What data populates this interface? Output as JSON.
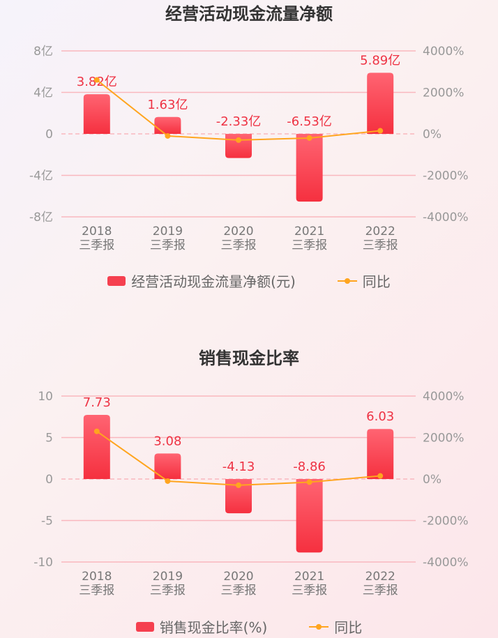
{
  "chart_data": [
    {
      "type": "bar",
      "title": "经营活动现金流量净额",
      "categories": [
        "2018",
        "2019",
        "2020",
        "2021",
        "2022"
      ],
      "category_sub": "三季报",
      "series": [
        {
          "name": "经营活动现金流量净额(元)",
          "kind": "bar",
          "axis": "left",
          "values": [
            3.82,
            1.63,
            -2.33,
            -6.53,
            5.89
          ],
          "labels": [
            "3.82亿",
            "1.63亿",
            "-2.33亿",
            "-6.53亿",
            "5.89亿"
          ]
        },
        {
          "name": "同比",
          "kind": "line",
          "axis": "right",
          "values": [
            2600,
            -100,
            -300,
            -200,
            150
          ]
        }
      ],
      "left_axis": {
        "ylim": [
          -8,
          8
        ],
        "ticks": [
          "8亿",
          "4亿",
          "0",
          "-4亿",
          "-8亿"
        ]
      },
      "right_axis": {
        "ylim": [
          -4000,
          4000
        ],
        "ticks": [
          "4000%",
          "2000%",
          "0%",
          "-2000%",
          "-4000%"
        ]
      },
      "bar_color": "#f5404f",
      "line_color": "#ffa51f",
      "grid": true,
      "legend_position": "bottom"
    },
    {
      "type": "bar",
      "title": "销售现金比率",
      "categories": [
        "2018",
        "2019",
        "2020",
        "2021",
        "2022"
      ],
      "category_sub": "三季报",
      "series": [
        {
          "name": "销售现金比率(%)",
          "kind": "bar",
          "axis": "left",
          "values": [
            7.73,
            3.08,
            -4.13,
            -8.86,
            6.03
          ],
          "labels": [
            "7.73",
            "3.08",
            "-4.13",
            "-8.86",
            "6.03"
          ]
        },
        {
          "name": "同比",
          "kind": "line",
          "axis": "right",
          "values": [
            2300,
            -100,
            -300,
            -150,
            150
          ]
        }
      ],
      "left_axis": {
        "ylim": [
          -10,
          10
        ],
        "ticks": [
          "10",
          "5",
          "0",
          "-5",
          "-10"
        ]
      },
      "right_axis": {
        "ylim": [
          -4000,
          4000
        ],
        "ticks": [
          "4000%",
          "2000%",
          "0%",
          "-2000%",
          "-4000%"
        ]
      },
      "bar_color": "#f5404f",
      "line_color": "#ffa51f",
      "grid": true,
      "legend_position": "bottom"
    }
  ]
}
